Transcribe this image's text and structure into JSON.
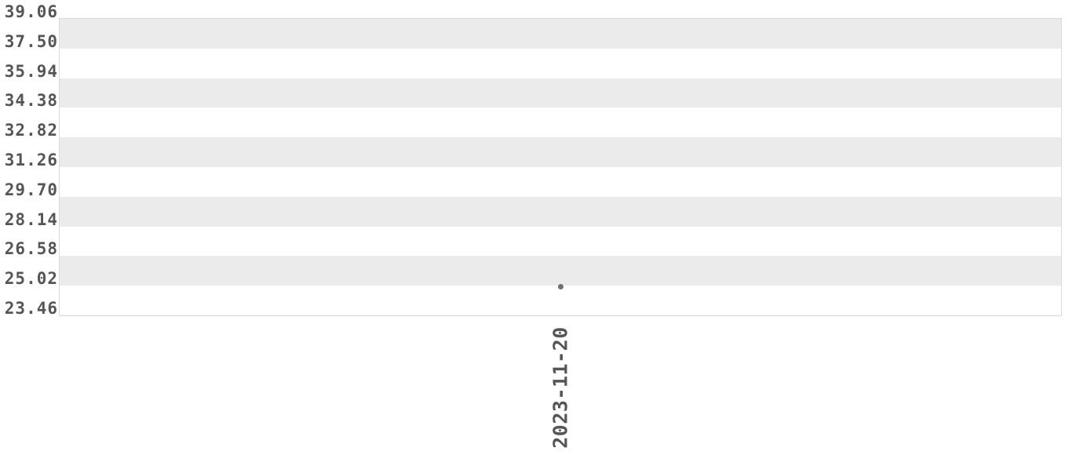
{
  "chart_data": {
    "type": "scatter",
    "title": "",
    "xlabel": "",
    "ylabel": "",
    "x_categories": [
      "2023-11-20"
    ],
    "points": [
      {
        "x": "2023-11-20",
        "y": 24.98
      }
    ],
    "y_ticks": [
      "39.06",
      "37.50",
      "35.94",
      "34.38",
      "32.82",
      "31.26",
      "29.70",
      "28.14",
      "26.58",
      "25.02",
      "23.46"
    ],
    "y_min": 23.46,
    "y_max": 39.06,
    "y_tick_step": 1.56,
    "x_tick_labels": [
      "2023-11-20"
    ],
    "x_tick_rotation_deg": 90,
    "grid": "alternating horizontal split-area bands, first band gray",
    "legend_position": "none"
  },
  "style": {
    "background": "#ffffff",
    "band_color": "#ebebeb",
    "axis_border_color": "#d9d9d9",
    "tick_label_color": "#555555",
    "point_color": "#6e6e6e"
  }
}
